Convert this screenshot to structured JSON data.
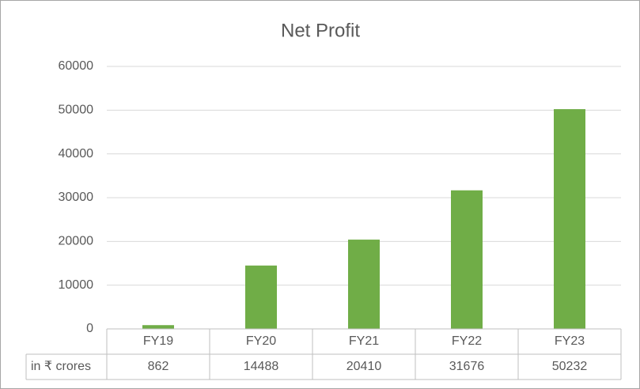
{
  "chart_data": {
    "type": "bar",
    "title": "Net Profit",
    "categories": [
      "FY19",
      "FY20",
      "FY21",
      "FY22",
      "FY23"
    ],
    "series": [
      {
        "name": "in ₹ crores",
        "color": "#70ad47",
        "values": [
          862,
          14488,
          20410,
          31676,
          50232
        ]
      }
    ],
    "ylim": [
      0,
      60000
    ],
    "yticks": [
      0,
      10000,
      20000,
      30000,
      40000,
      50000,
      60000
    ],
    "grid": true,
    "data_table": true
  }
}
